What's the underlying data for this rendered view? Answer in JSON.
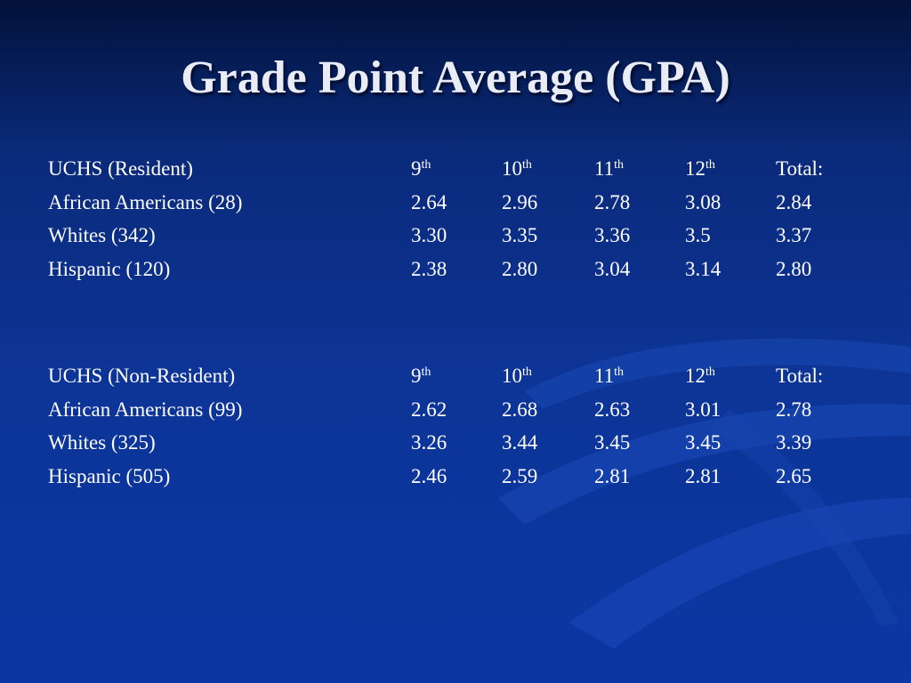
{
  "title": "Grade Point Average (GPA)",
  "sections": [
    {
      "header": {
        "label": "UCHS (Resident)",
        "grades": [
          {
            "num": "9",
            "sup": "th"
          },
          {
            "num": "10",
            "sup": "th"
          },
          {
            "num": "11",
            "sup": "th"
          },
          {
            "num": "12",
            "sup": "th"
          }
        ],
        "total": "Total:"
      },
      "rows": [
        {
          "label": "African Americans (28)",
          "values": [
            "2.64",
            "2.96",
            "2.78",
            "3.08",
            "2.84"
          ]
        },
        {
          "label": "Whites (342)",
          "values": [
            "3.30",
            "3.35",
            "3.36",
            "3.5",
            "3.37"
          ]
        },
        {
          "label": "Hispanic (120)",
          "values": [
            "2.38",
            "2.80",
            "3.04",
            "3.14",
            "2.80"
          ]
        }
      ]
    },
    {
      "header": {
        "label": "UCHS (Non-Resident)",
        "grades": [
          {
            "num": "9",
            "sup": "th"
          },
          {
            "num": "10",
            "sup": "th"
          },
          {
            "num": "11",
            "sup": "th"
          },
          {
            "num": "12",
            "sup": "th"
          }
        ],
        "total": "Total:"
      },
      "rows": [
        {
          "label": "African Americans (99)",
          "values": [
            "2.62",
            "2.68",
            "2.63",
            "3.01",
            "2.78"
          ]
        },
        {
          "label": "Whites (325)",
          "values": [
            "3.26",
            "3.44",
            "3.45",
            "3.45",
            "3.39"
          ]
        },
        {
          "label": "Hispanic (505)",
          "values": [
            "2.46",
            "2.59",
            "2.81",
            "2.81",
            "2.65"
          ]
        }
      ]
    }
  ]
}
